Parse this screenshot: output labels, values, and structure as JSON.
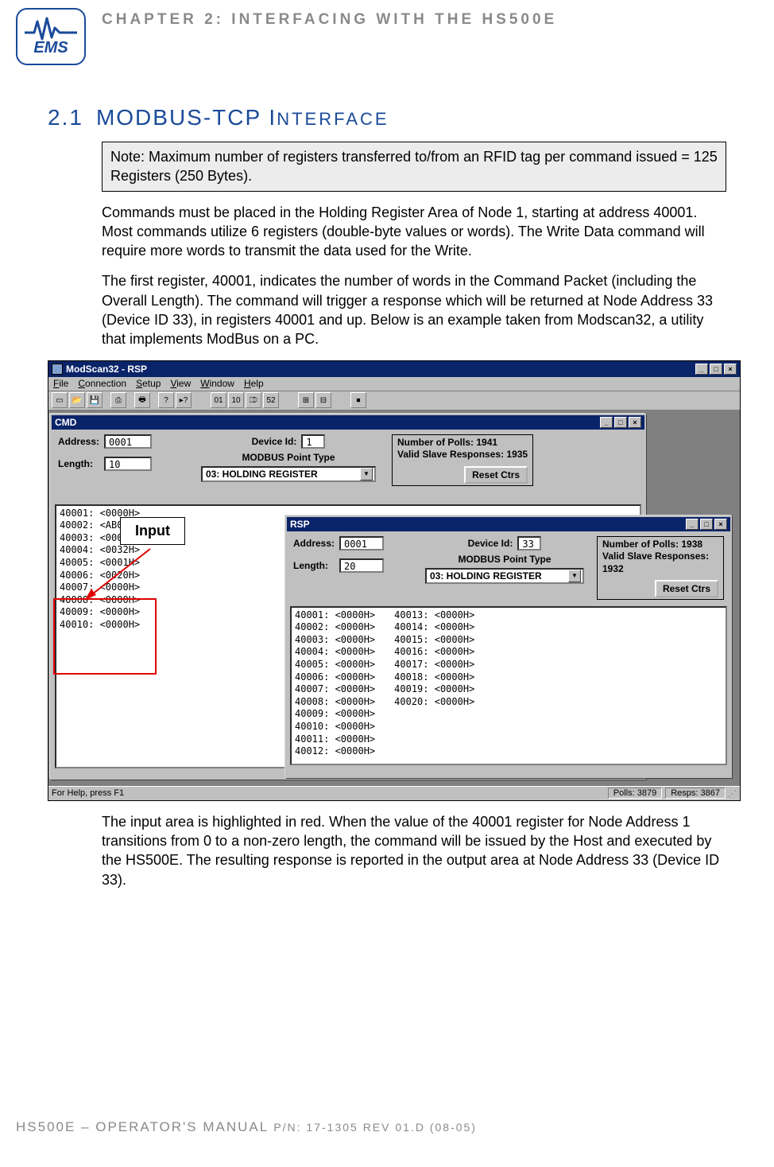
{
  "header": {
    "logo_text": "EMS",
    "chapter": "CHAPTER 2: INTERFACING WITH THE HS500E"
  },
  "section": {
    "num": "2.1",
    "title_a": "MODBUS-TCP I",
    "title_b": "NTERFACE"
  },
  "note": "Note: Maximum number of registers transferred to/from an RFID tag per command issued = 125 Registers (250 Bytes).",
  "p1": "Commands must be placed in the Holding Register Area of Node 1, starting at address 40001. Most commands utilize 6 registers (double-byte values or words). The Write Data command will require more words to transmit the data used for the Write.",
  "p2": "The first register, 40001, indicates the number of words in the Command Packet (including the Overall Length). The command will trigger a response which will be returned at Node Address 33 (Device ID 33), in registers 40001 and up. Below is an example taken from Modscan32, a utility that implements ModBus on a PC.",
  "p3": "The input area is highlighted in red. When the value of the 40001 register for Node Address 1 transitions from 0 to a non-zero length, the command will be issued by the Host and executed by the HS500E. The resulting response is reported in the output area at Node Address 33 (Device ID 33).",
  "screenshot": {
    "app_title": "ModScan32 - RSP",
    "menus": [
      "File",
      "Connection",
      "Setup",
      "View",
      "Window",
      "Help"
    ],
    "status_left": "For Help, press F1",
    "status_polls": "Polls: 3879",
    "status_resps": "Resps: 3867",
    "input_callout": "Input",
    "cmd": {
      "title": "CMD",
      "address_lbl": "Address:",
      "address": "0001",
      "length_lbl": "Length:",
      "length": "10",
      "device_lbl": "Device Id:",
      "device": "1",
      "pt_label": "MODBUS Point Type",
      "pt_value": "03: HOLDING REGISTER",
      "polls_line1": "Number of Polls: 1941",
      "polls_line2": "Valid Slave Responses: 1935",
      "reset": "Reset Ctrs",
      "rows": [
        "40001: <0000H>",
        "40002: <AB02H>",
        "40003: <0001H>",
        "40004: <0032H>",
        "40005: <0001H>",
        "40006: <0020H>",
        "40007: <0000H>",
        "40008: <0000H>",
        "40009: <0000H>",
        "40010: <0000H>"
      ],
      "highlight_rows": 6
    },
    "rsp": {
      "title": "RSP",
      "address_lbl": "Address:",
      "address": "0001",
      "length_lbl": "Length:",
      "length": "20",
      "device_lbl": "Device Id:",
      "device": "33",
      "pt_label": "MODBUS Point Type",
      "pt_value": "03: HOLDING REGISTER",
      "polls_line1": "Number of Polls: 1938",
      "polls_line2": "Valid Slave Responses: 1932",
      "reset": "Reset Ctrs",
      "col1": [
        "40001: <0000H>",
        "40002: <0000H>",
        "40003: <0000H>",
        "40004: <0000H>",
        "40005: <0000H>",
        "40006: <0000H>",
        "40007: <0000H>",
        "40008: <0000H>",
        "40009: <0000H>",
        "40010: <0000H>",
        "40011: <0000H>",
        "40012: <0000H>"
      ],
      "col2": [
        "40013: <0000H>",
        "40014: <0000H>",
        "40015: <0000H>",
        "40016: <0000H>",
        "40017: <0000H>",
        "40018: <0000H>",
        "40019: <0000H>",
        "40020: <0000H>"
      ]
    }
  },
  "footer": {
    "a": "HS500E – OPERATOR'S MANUAL ",
    "b": "P/N: 17-1305 REV 01.D (08-05)"
  },
  "colors": {
    "accent": "#1a4a9a",
    "grey": "#8a8a8a",
    "titlebar": "#0a246a",
    "win_bg": "#c0c0c0",
    "mdi_bg": "#808080",
    "red": "#e00000"
  }
}
